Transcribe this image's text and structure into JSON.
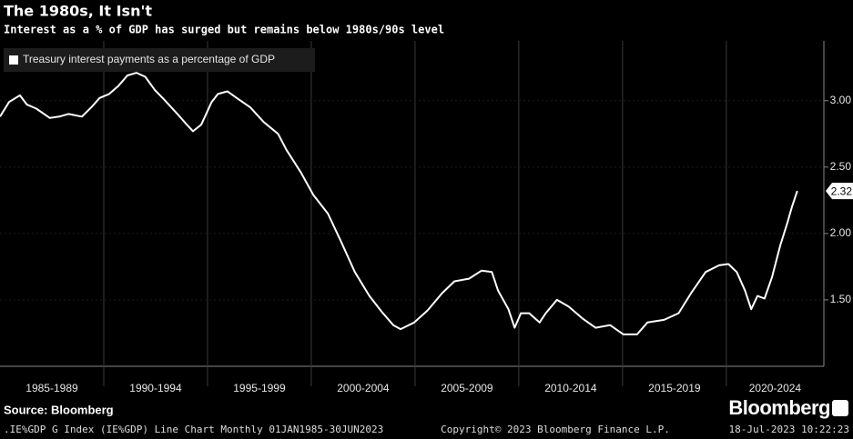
{
  "chart_data": {
    "type": "line",
    "title": "The 1980s, It Isn't",
    "subtitle": "Interest as a % of GDP has surged but remains below 1980s/90s level",
    "source": "Source: Bloomberg",
    "logo": "Bloomberg",
    "footer": [
      ".IE%GDP G Index (IE%GDP) Line Chart  Monthly 01JAN1985-30JUN2023",
      "Copyright© 2023 Bloomberg Finance L.P.",
      "18-Jul-2023 10:22:23"
    ],
    "legend": "top-left",
    "xlim": [
      1985,
      2024.7
    ],
    "xticks": [
      {
        "value": 1985,
        "label": "1985-1989"
      },
      {
        "value": 1990,
        "label": "1990-1994"
      },
      {
        "value": 1995,
        "label": "1995-1999"
      },
      {
        "value": 2000,
        "label": "2000-2004"
      },
      {
        "value": 2005,
        "label": "2005-2009"
      },
      {
        "value": 2010,
        "label": "2010-2014"
      },
      {
        "value": 2015,
        "label": "2015-2019"
      },
      {
        "value": 2020,
        "label": "2020-2024"
      }
    ],
    "ylim": [
      1.0,
      3.45
    ],
    "yticks": [
      {
        "value": 1.5,
        "label": "1.50"
      },
      {
        "value": 2.0,
        "label": "2.00"
      },
      {
        "value": 2.5,
        "label": "2.50"
      },
      {
        "value": 3.0,
        "label": "3.00"
      }
    ],
    "grid": true,
    "x": [
      1985.0,
      1985.44,
      1985.96,
      1986.3,
      1986.75,
      1987.4,
      1987.85,
      1988.3,
      1988.95,
      1989.4,
      1989.8,
      1990.26,
      1990.7,
      1991.14,
      1991.58,
      1992.0,
      1992.46,
      1992.9,
      1993.55,
      1994.0,
      1994.3,
      1994.7,
      1995.2,
      1995.5,
      1995.96,
      1996.5,
      1997.06,
      1997.7,
      1998.4,
      1998.8,
      1999.5,
      2000.1,
      2000.8,
      2001.4,
      2002.1,
      2002.8,
      2003.4,
      2003.95,
      2004.3,
      2004.96,
      2005.6,
      2006.3,
      2006.9,
      2007.6,
      2008.2,
      2008.7,
      2009.0,
      2009.5,
      2009.8,
      2010.1,
      2010.5,
      2011.0,
      2011.3,
      2011.84,
      2012.4,
      2013.07,
      2013.7,
      2014.4,
      2015.04,
      2015.7,
      2016.2,
      2017.0,
      2017.7,
      2018.3,
      2019.0,
      2019.65,
      2020.1,
      2020.5,
      2020.9,
      2021.2,
      2021.5,
      2021.84,
      2022.2,
      2022.6,
      2022.94,
      2023.16,
      2023.42
    ],
    "series": [
      {
        "name": "Treasury interest payments as a percentage of GDP",
        "color": "#ffffff",
        "values": [
          2.88,
          2.99,
          3.04,
          2.97,
          2.94,
          2.87,
          2.88,
          2.9,
          2.88,
          2.95,
          3.02,
          3.05,
          3.11,
          3.19,
          3.21,
          3.18,
          3.08,
          3.01,
          2.9,
          2.82,
          2.77,
          2.82,
          2.99,
          3.05,
          3.07,
          3.01,
          2.95,
          2.84,
          2.75,
          2.63,
          2.46,
          2.29,
          2.15,
          1.95,
          1.71,
          1.53,
          1.41,
          1.31,
          1.28,
          1.33,
          1.42,
          1.55,
          1.64,
          1.66,
          1.72,
          1.71,
          1.57,
          1.43,
          1.29,
          1.4,
          1.4,
          1.33,
          1.4,
          1.5,
          1.45,
          1.36,
          1.29,
          1.31,
          1.24,
          1.24,
          1.33,
          1.35,
          1.4,
          1.55,
          1.71,
          1.76,
          1.77,
          1.71,
          1.57,
          1.43,
          1.53,
          1.51,
          1.67,
          1.91,
          2.08,
          2.2,
          2.32
        ]
      }
    ]
  }
}
